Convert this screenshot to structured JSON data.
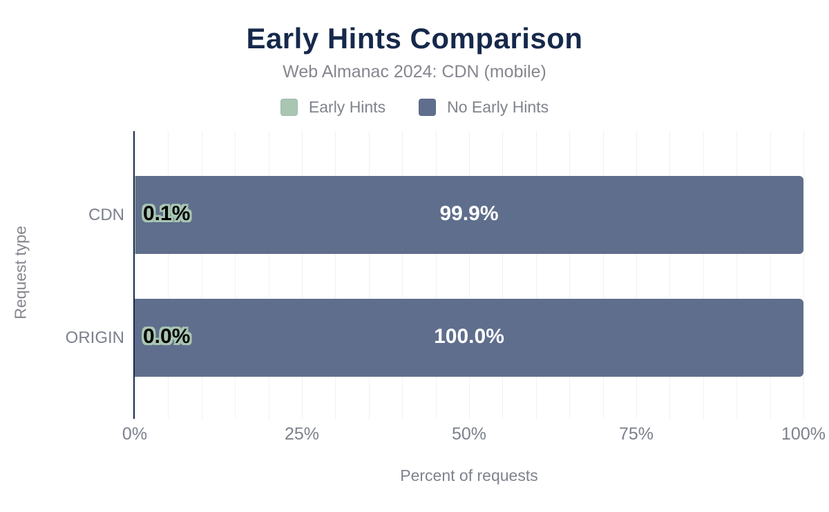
{
  "title": "Early Hints Comparison",
  "subtitle": "Web Almanac 2024: CDN (mobile)",
  "colors": {
    "early_hints": "#a9c6b4",
    "no_early_hints": "#5f6e8c",
    "title_text": "#16294b",
    "muted_text": "#85868e",
    "tick_text": "#7b808c",
    "gridline": "#f1f1f2",
    "axis_line": "#16294b",
    "value_label_on_bar": "#ffffff",
    "value_label_outlined_fill": "#000000"
  },
  "legend": {
    "items": [
      {
        "label": "Early Hints",
        "color": "#a9c6b4"
      },
      {
        "label": "No Early Hints",
        "color": "#5f6e8c"
      }
    ]
  },
  "chart_data": {
    "type": "bar",
    "orientation": "horizontal",
    "stacked": true,
    "title": "Early Hints Comparison",
    "subtitle": "Web Almanac 2024: CDN (mobile)",
    "categories": [
      "CDN",
      "ORIGIN"
    ],
    "series": [
      {
        "name": "Early Hints",
        "color": "#a9c6b4",
        "values": [
          0.1,
          0.0
        ],
        "data_labels": [
          "0.1%",
          "0.0%"
        ]
      },
      {
        "name": "No Early Hints",
        "color": "#5f6e8c",
        "values": [
          99.9,
          100.0
        ],
        "data_labels": [
          "99.9%",
          "100.0%"
        ]
      }
    ],
    "xlabel": "Percent of requests",
    "ylabel": "Request type",
    "xlim": [
      0,
      100
    ],
    "x_ticks": [
      {
        "value": 0,
        "label": "0%"
      },
      {
        "value": 25,
        "label": "25%"
      },
      {
        "value": 50,
        "label": "50%"
      },
      {
        "value": 75,
        "label": "75%"
      },
      {
        "value": 100,
        "label": "100%"
      }
    ],
    "minor_grid_step_percent": 5,
    "grid": true,
    "legend_position": "top"
  }
}
